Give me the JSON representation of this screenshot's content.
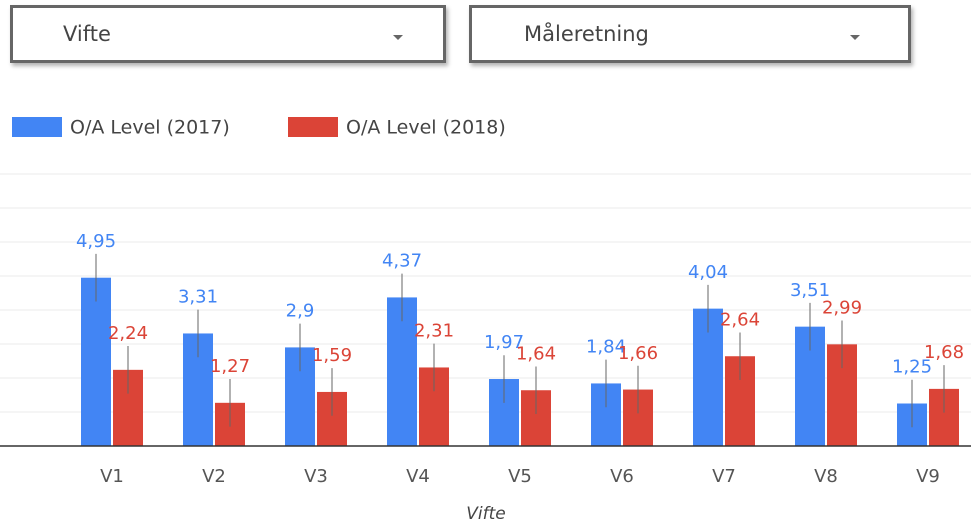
{
  "filters": [
    "Vifte",
    "Måleretning"
  ],
  "chart_data": {
    "type": "bar",
    "x_label": "Vifte",
    "categories": [
      "V1",
      "V2",
      "V3",
      "V4",
      "V5",
      "V6",
      "V7",
      "V8",
      "V9"
    ],
    "series": [
      {
        "name": "O/A Level (2017)",
        "color": "#4285f4",
        "values": [
          4.95,
          3.31,
          2.9,
          4.37,
          1.97,
          1.84,
          4.04,
          3.51,
          1.25
        ],
        "value_labels": [
          "4,95",
          "3,31",
          "2,9",
          "4,37",
          "1,97",
          "1,84",
          "4,04",
          "3,51",
          "1,25"
        ],
        "errors": [
          0.7,
          0.7,
          0.7,
          0.7,
          0.7,
          0.7,
          0.7,
          0.7,
          0.7
        ]
      },
      {
        "name": "O/A Level (2018)",
        "color": "#db4437",
        "values": [
          2.24,
          1.27,
          1.59,
          2.31,
          1.64,
          1.66,
          2.64,
          2.99,
          1.68
        ],
        "value_labels": [
          "2,24",
          "1,27",
          "1,59",
          "2,31",
          "1,64",
          "1,66",
          "2,64",
          "2,99",
          "1,68"
        ],
        "errors": [
          0.7,
          0.7,
          0.7,
          0.7,
          0.7,
          0.7,
          0.7,
          0.7,
          0.7
        ]
      }
    ],
    "ylim": [
      0,
      8
    ],
    "yticks": [
      0,
      1,
      2,
      3,
      4,
      5,
      6,
      7,
      8
    ],
    "grid": true,
    "legend": "top-left"
  }
}
